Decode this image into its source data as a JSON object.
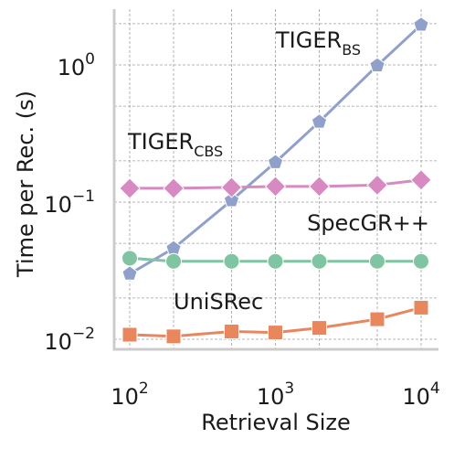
{
  "chart_data": {
    "type": "line",
    "xlabel": "Retrieval Size",
    "ylabel": "Time per Rec. (s)",
    "xscale": "log",
    "yscale": "log",
    "xlim": [
      80,
      12000
    ],
    "ylim": [
      0.008,
      3.0
    ],
    "grid": true,
    "x_ticks": [
      {
        "base": "10",
        "exp": "2",
        "value": 100
      },
      {
        "base": "10",
        "exp": "3",
        "value": 1000
      },
      {
        "base": "10",
        "exp": "4",
        "value": 10000
      }
    ],
    "y_ticks": [
      {
        "base": "10",
        "exp": "−2",
        "value": 0.01
      },
      {
        "base": "10",
        "exp": "−1",
        "value": 0.1
      },
      {
        "base": "10",
        "exp": "0",
        "value": 1
      }
    ],
    "x": [
      100,
      200,
      500,
      1000,
      2000,
      5000,
      10000
    ],
    "series": [
      {
        "name": "TIGER",
        "name_sub": "BS",
        "color": "#8fa0cb",
        "marker": "pentagon",
        "values": [
          0.03,
          0.046,
          0.103,
          0.195,
          0.385,
          0.99,
          1.96
        ]
      },
      {
        "name": "TIGER",
        "name_sub": "CBS",
        "color": "#d78ac2",
        "marker": "diamond",
        "values": [
          0.126,
          0.126,
          0.128,
          0.13,
          0.13,
          0.133,
          0.145
        ]
      },
      {
        "name": "SpecGR++",
        "name_sub": "",
        "color": "#80c4a3",
        "marker": "circle",
        "values": [
          0.039,
          0.037,
          0.037,
          0.037,
          0.037,
          0.037,
          0.037
        ]
      },
      {
        "name": "UniSRec",
        "name_sub": "",
        "color": "#e8865e",
        "marker": "square",
        "values": [
          0.0108,
          0.0105,
          0.0114,
          0.0112,
          0.0121,
          0.014,
          0.017
        ]
      }
    ]
  }
}
